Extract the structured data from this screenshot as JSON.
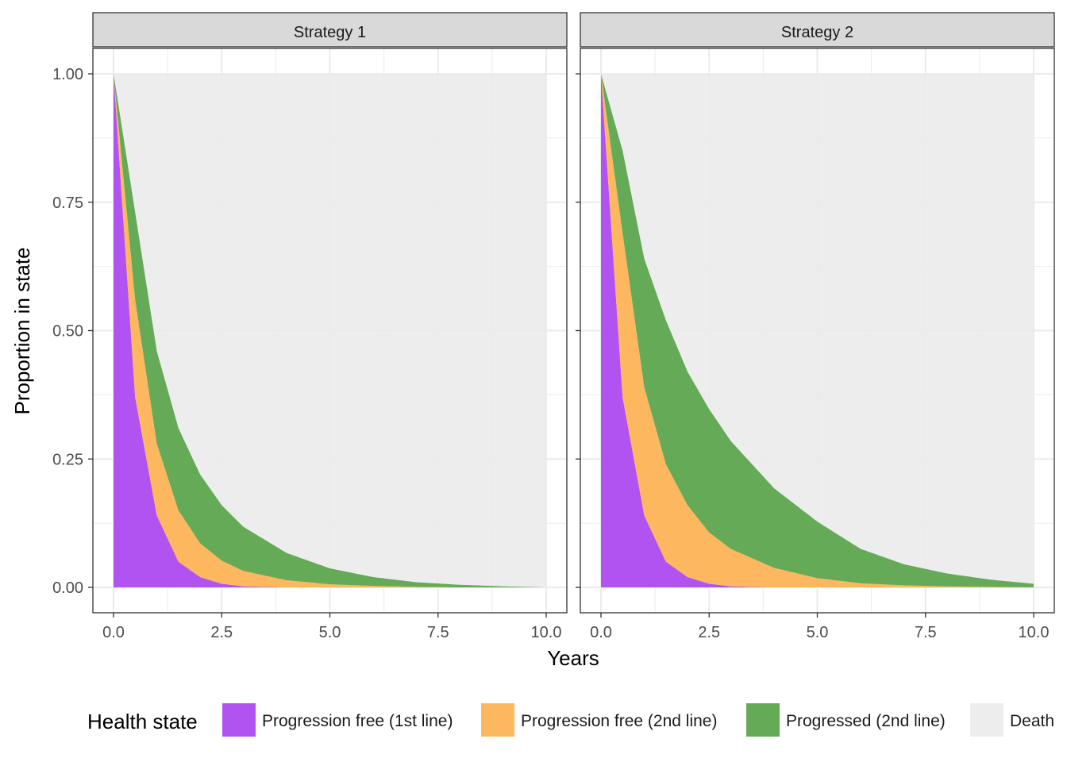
{
  "chart_data": {
    "type": "area",
    "stacked": true,
    "xlabel": "Years",
    "ylabel": "Proportion in state",
    "xlim": [
      0,
      10
    ],
    "ylim": [
      0,
      1
    ],
    "x_ticks": [
      "0.0",
      "2.5",
      "5.0",
      "7.5",
      "10.0"
    ],
    "y_ticks": [
      "0.00",
      "0.25",
      "0.50",
      "0.75",
      "1.00"
    ],
    "grid": true,
    "legend": {
      "title": "Health state",
      "position": "bottom",
      "entries": [
        {
          "label": "Progression free (1st line)",
          "color": "#b153f0"
        },
        {
          "label": "Progression free (2nd line)",
          "color": "#fdb75f"
        },
        {
          "label": "Progressed (2nd line)",
          "color": "#64aa57"
        },
        {
          "label": "Death",
          "color": "#ededed"
        }
      ]
    },
    "x": [
      0,
      0.5,
      1,
      1.5,
      2,
      2.5,
      3,
      4,
      5,
      6,
      7,
      8,
      9,
      10
    ],
    "panels": [
      {
        "title": "Strategy 1",
        "series": [
          {
            "name": "Progression free (1st line)",
            "values": [
              1.0,
              0.37,
              0.14,
              0.05,
              0.02,
              0.007,
              0.002,
              0.0,
              0.0,
              0.0,
              0.0,
              0.0,
              0.0,
              0.0
            ]
          },
          {
            "name": "Progression free (2nd line)",
            "values": [
              0.0,
              0.19,
              0.14,
              0.1,
              0.066,
              0.045,
              0.03,
              0.014,
              0.006,
              0.003,
              0.001,
              0.0,
              0.0,
              0.0
            ]
          },
          {
            "name": "Progressed (2nd line)",
            "values": [
              0.0,
              0.17,
              0.18,
              0.16,
              0.134,
              0.108,
              0.086,
              0.053,
              0.031,
              0.017,
              0.009,
              0.005,
              0.002,
              0.0
            ]
          }
        ]
      },
      {
        "title": "Strategy 2",
        "series": [
          {
            "name": "Progression free (1st line)",
            "values": [
              1.0,
              0.37,
              0.14,
              0.05,
              0.02,
              0.007,
              0.002,
              0.0,
              0.0,
              0.0,
              0.0,
              0.0,
              0.0,
              0.0
            ]
          },
          {
            "name": "Progression free (2nd line)",
            "values": [
              0.0,
              0.32,
              0.25,
              0.19,
              0.14,
              0.1,
              0.073,
              0.038,
              0.018,
              0.008,
              0.004,
              0.002,
              0.001,
              0.0
            ]
          },
          {
            "name": "Progressed (2nd line)",
            "values": [
              0.0,
              0.16,
              0.25,
              0.28,
              0.26,
              0.24,
              0.21,
              0.155,
              0.11,
              0.067,
              0.041,
              0.025,
              0.014,
              0.007
            ]
          }
        ]
      }
    ]
  }
}
